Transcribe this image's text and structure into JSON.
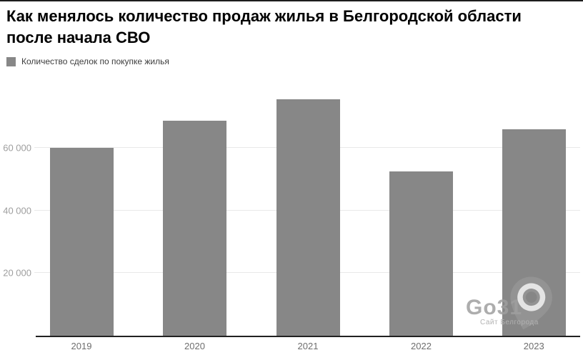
{
  "header": {
    "title_line1": "Как менялось количество продаж жилья в Белгородской области",
    "title_line2": "после начала СВО"
  },
  "legend": {
    "label": "Количество сделок по покупке жилья",
    "swatch_color": "#878787"
  },
  "chart_data": {
    "type": "bar",
    "title": "Как менялось количество продаж жилья в Белгородской области после начала СВО",
    "series_name": "Количество сделок по покупке жилья",
    "categories": [
      "2019",
      "2020",
      "2021",
      "2022",
      "2023"
    ],
    "values": [
      60000,
      68500,
      75500,
      52400,
      65900
    ],
    "xlabel": "",
    "ylabel": "",
    "ylim": [
      0,
      80000
    ],
    "yticks": [
      20000,
      40000,
      60000
    ],
    "ytick_labels": [
      "20 000",
      "40 000",
      "60 000"
    ],
    "grid": true,
    "legend_position": "top-left",
    "bar_color": "#878787"
  },
  "watermark": {
    "brand": "Go31",
    "tagline": "Сайт Белгорода",
    "icon": "map-pin-icon",
    "color": "#9f9f9f"
  }
}
